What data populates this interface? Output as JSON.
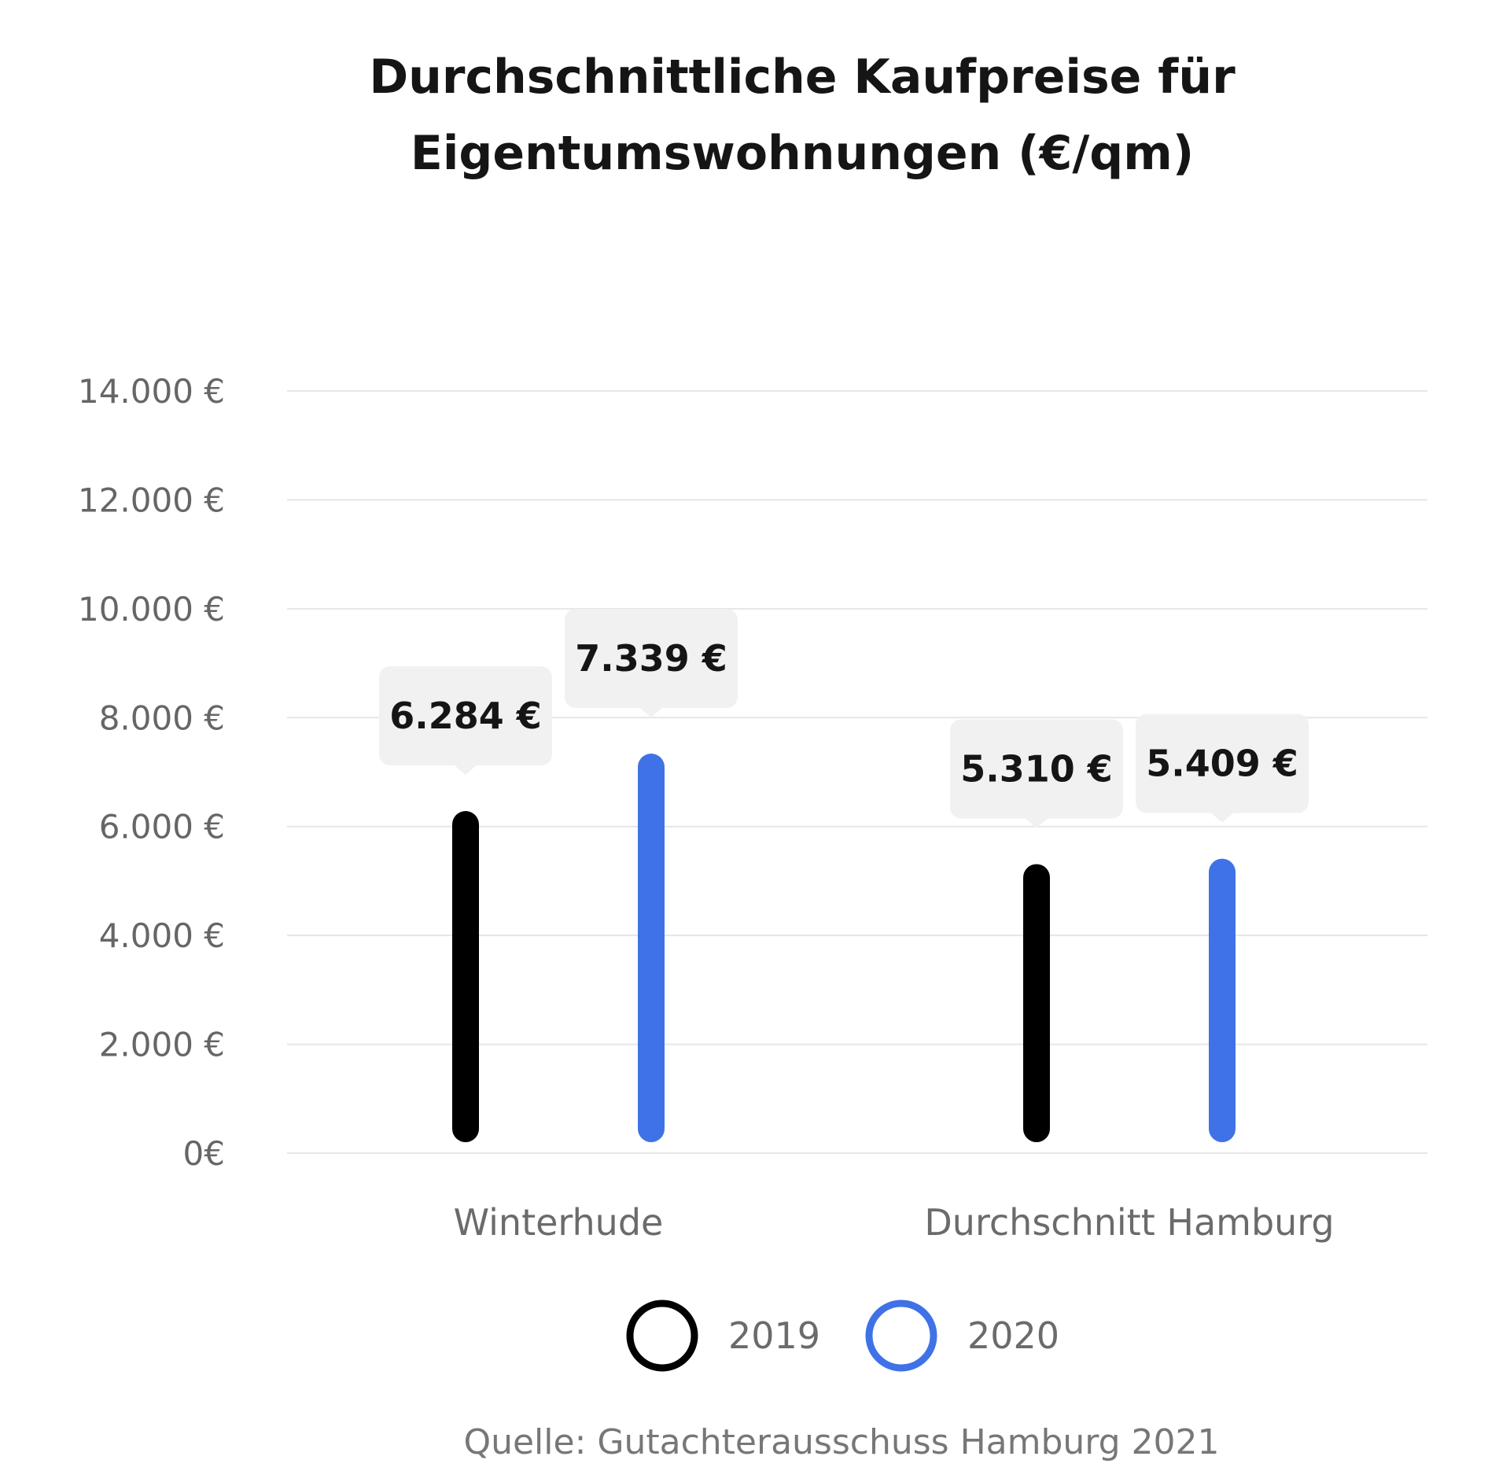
{
  "chart_data": {
    "type": "bar",
    "title_lines": [
      "Durchschnittliche Kaufpreise für",
      "Eigentumswohnungen (€/qm)"
    ],
    "categories": [
      "Winterhude",
      "Durchschnitt Hamburg"
    ],
    "series": [
      {
        "name": "2019",
        "values": [
          6284,
          5310
        ],
        "labels": [
          "6.284 €",
          "5.310 €"
        ],
        "color": "#000000"
      },
      {
        "name": "2020",
        "values": [
          7339,
          5409
        ],
        "labels": [
          "7.339 €",
          "5.409 €"
        ],
        "color": "#3f72e6"
      }
    ],
    "ylim": [
      0,
      14000
    ],
    "yticks": [
      0,
      2000,
      4000,
      6000,
      8000,
      10000,
      12000,
      14000
    ],
    "ytick_labels": [
      "0€",
      "2.000 €",
      "4.000 €",
      "6.000 €",
      "8.000 €",
      "10.000 €",
      "12.000 €",
      "14.000 €"
    ],
    "grid": true,
    "legend_position": "bottom-center",
    "source": "Quelle: Gutachterausschuss Hamburg 2021"
  }
}
